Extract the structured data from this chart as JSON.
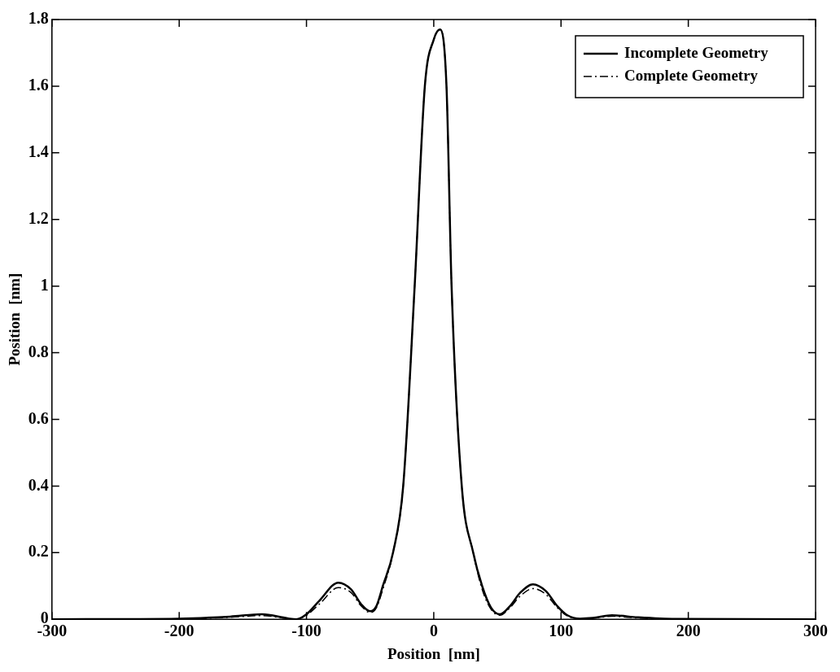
{
  "chart_data": {
    "type": "line",
    "xlabel": "Position  [nm]",
    "ylabel": "Position  [nm]",
    "xlim": [
      -300,
      300
    ],
    "xticks": [
      -300,
      -200,
      -100,
      0,
      100,
      200,
      300
    ],
    "ylim": [
      0,
      1.8
    ],
    "yticks": [
      0,
      0.2,
      0.4,
      0.6,
      0.8,
      1,
      1.2,
      1.4,
      1.6,
      1.8
    ],
    "grid": false,
    "legend": "top right",
    "marker": "none",
    "series": [
      {
        "name": "Incomplete Geometry",
        "color": "#000000",
        "line_style": "solid",
        "x": [
          -300,
          -200,
          -160,
          -135,
          -115,
          -108,
          -100,
          -90,
          -75,
          -65,
          -57,
          -50,
          -45,
          -40,
          -32,
          -24,
          -15,
          -7,
          0,
          5,
          10,
          14,
          22,
          31,
          38,
          45,
          52,
          60,
          68,
          78,
          88,
          97,
          105,
          115,
          125,
          140,
          160,
          190,
          300
        ],
        "values": [
          0,
          0.002,
          0.008,
          0.015,
          0.003,
          0,
          0.015,
          0.055,
          0.11,
          0.09,
          0.045,
          0.024,
          0.04,
          0.1,
          0.2,
          0.4,
          1,
          1.6,
          1.74,
          1.77,
          1.6,
          1,
          0.4,
          0.2,
          0.1,
          0.035,
          0.015,
          0.04,
          0.08,
          0.105,
          0.085,
          0.04,
          0.012,
          0.002,
          0.004,
          0.012,
          0.006,
          0.001,
          0
        ]
      },
      {
        "name": "Complete Geometry",
        "color": "#000000",
        "line_style": "dashed",
        "x": [
          -300,
          -200,
          -160,
          -135,
          -115,
          -108,
          -100,
          -90,
          -75,
          -65,
          -57,
          -50,
          -45,
          -40,
          -32,
          -24,
          -15,
          -7,
          0,
          5,
          10,
          14,
          22,
          31,
          38,
          45,
          52,
          60,
          68,
          78,
          88,
          97,
          105,
          115,
          125,
          140,
          160,
          190,
          300
        ],
        "values": [
          0,
          0.001,
          0.006,
          0.011,
          0.002,
          0,
          0.012,
          0.045,
          0.095,
          0.08,
          0.04,
          0.02,
          0.035,
          0.09,
          0.2,
          0.4,
          1,
          1.6,
          1.74,
          1.77,
          1.6,
          1,
          0.4,
          0.2,
          0.09,
          0.03,
          0.012,
          0.035,
          0.07,
          0.092,
          0.075,
          0.035,
          0.01,
          0.001,
          0.003,
          0.009,
          0.004,
          0,
          0
        ]
      }
    ]
  }
}
